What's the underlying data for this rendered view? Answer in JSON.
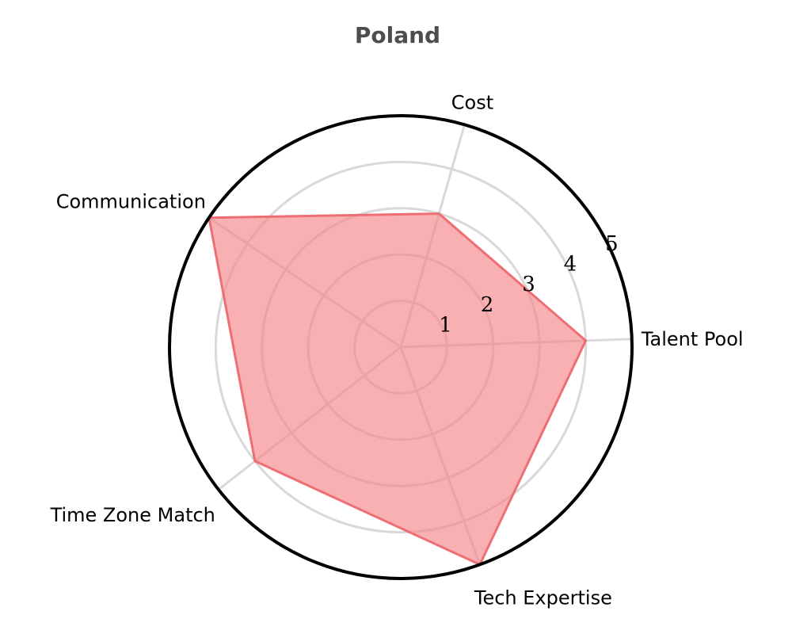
{
  "chart_data": {
    "type": "radar",
    "title": "Poland",
    "axes": [
      "Talent Pool",
      "Cost",
      "Communication",
      "Time Zone Match",
      "Tech Expertise"
    ],
    "series": [
      {
        "values": [
          4,
          3,
          5,
          4,
          5
        ],
        "color": "#f08080"
      }
    ],
    "radial_range": [
      0,
      5
    ],
    "radial_ticks": [
      1,
      2,
      3,
      4,
      5
    ],
    "grid": true,
    "legend": "none"
  },
  "colors": {
    "fill": "#f4868a",
    "line": "#ee6e73",
    "grid": "#d9d9d9",
    "frame": "#000000",
    "title": "#4d4d4d"
  }
}
